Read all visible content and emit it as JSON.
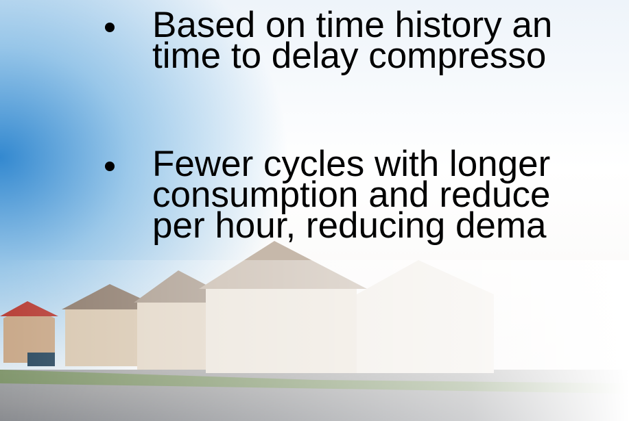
{
  "bullets": [
    {
      "lines": [
        "Based on time history an",
        "time to delay compresso"
      ]
    },
    {
      "lines": [
        "Fewer cycles with longer",
        "consumption and reduce",
        "per hour, reducing dema"
      ]
    }
  ]
}
